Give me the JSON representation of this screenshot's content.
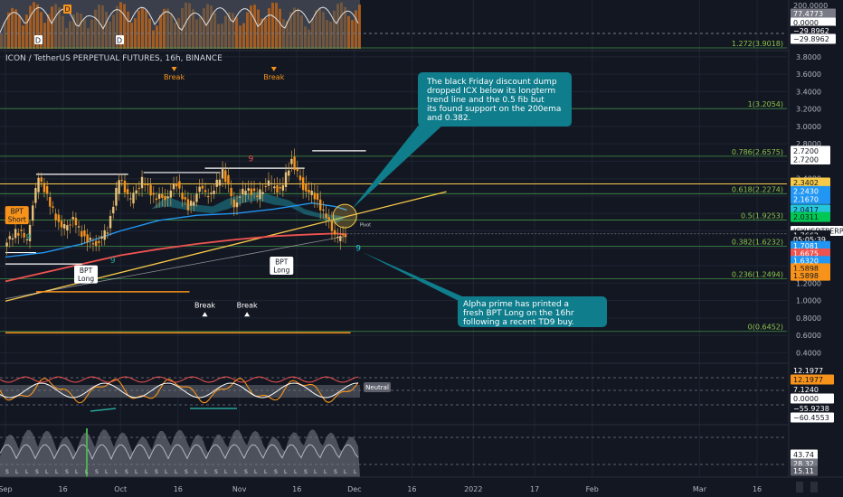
{
  "header": {
    "title": "ICON / TetherUS PERPETUAL FUTURES, 16h, BINANCE",
    "currency": "USDT"
  },
  "chart_data": {
    "type": "line",
    "title": "ICON / TetherUS PERPETUAL FUTURES, 16h, BINANCE",
    "xlabel": "",
    "ylabel": "USDT",
    "ylim": [
      0.3,
      3.85
    ],
    "grid": true,
    "x_ticks": [
      {
        "label": "Sep",
        "v": 0
      },
      {
        "label": "16",
        "v": 15
      },
      {
        "label": "Oct",
        "v": 30
      },
      {
        "label": "16",
        "v": 45
      },
      {
        "label": "Nov",
        "v": 61
      },
      {
        "label": "16",
        "v": 76
      },
      {
        "label": "Dec",
        "v": 91
      },
      {
        "label": "16",
        "v": 106
      },
      {
        "label": "2022",
        "v": 122
      },
      {
        "label": "17",
        "v": 138
      },
      {
        "label": "Feb",
        "v": 153
      },
      {
        "label": "Mar",
        "v": 181
      },
      {
        "label": "16",
        "v": 196
      }
    ],
    "y_ticks": [
      0.4,
      0.6,
      0.8,
      1.0,
      1.2,
      1.4,
      1.6,
      1.8,
      2.0,
      2.2,
      2.4,
      2.6,
      2.8,
      3.0,
      3.2,
      3.4,
      3.6,
      3.8
    ],
    "y_tick_labels": [
      "0.4000",
      "0.6000",
      "0.8000",
      "1.0000",
      "1.2000",
      "1.4000",
      "1.6000",
      "1.8000",
      "2.0000",
      "2.2000",
      "2.4000",
      "2.6000",
      "2.8000",
      "3.0000",
      "3.2000",
      "3.4000",
      "3.6000",
      "3.8000"
    ],
    "price_series": {
      "name": "ICXUSDTPERP",
      "x": [
        0,
        3,
        6,
        9,
        12,
        15,
        18,
        21,
        24,
        27,
        30,
        33,
        36,
        39,
        42,
        45,
        48,
        51,
        54,
        57,
        60,
        63,
        66,
        69,
        72,
        75,
        78,
        81,
        84,
        87,
        89
      ],
      "y": [
        1.62,
        1.8,
        1.72,
        2.45,
        2.1,
        1.82,
        1.92,
        1.72,
        1.65,
        1.82,
        2.4,
        2.15,
        2.38,
        2.2,
        2.18,
        2.35,
        2.05,
        2.28,
        2.2,
        2.5,
        2.1,
        2.3,
        2.2,
        2.35,
        2.25,
        2.62,
        2.3,
        2.2,
        1.95,
        1.7,
        1.766
      ]
    },
    "ema200": {
      "x": [
        0,
        10,
        20,
        30,
        40,
        50,
        60,
        70,
        80,
        86,
        89
      ],
      "y": [
        1.22,
        1.32,
        1.42,
        1.52,
        1.59,
        1.65,
        1.7,
        1.74,
        1.76,
        1.77,
        1.76
      ]
    },
    "ema_blue": {
      "x": [
        0,
        10,
        20,
        30,
        40,
        50,
        60,
        70,
        80,
        86,
        89
      ],
      "y": [
        1.5,
        1.55,
        1.65,
        1.8,
        1.92,
        1.98,
        2.0,
        2.05,
        2.12,
        2.08,
        2.04
      ]
    },
    "trend_line": {
      "x": [
        0,
        115
      ],
      "y": [
        1.2,
        2.25
      ]
    },
    "fib_levels": [
      {
        "ratio": "1.272(3.9018)",
        "price": 3.9018
      },
      {
        "ratio": "1(3.2054)",
        "price": 3.2054
      },
      {
        "ratio": "0.786(2.6575)",
        "price": 2.6575
      },
      {
        "ratio": "0.618(2.2274)",
        "price": 2.2274
      },
      {
        "ratio": "0.5(1.9253)",
        "price": 1.9253
      },
      {
        "ratio": "0.382(1.6232)",
        "price": 1.6232
      },
      {
        "ratio": "0.236(1.2494)",
        "price": 1.2494
      },
      {
        "ratio": "0(0.6452)",
        "price": 0.6452
      }
    ],
    "markers": [
      {
        "label": "Break",
        "x": 44,
        "price": 3.58,
        "dir": "down"
      },
      {
        "label": "Break",
        "x": 70,
        "price": 3.58,
        "dir": "down"
      },
      {
        "label": "Break",
        "x": 52,
        "price": 0.92,
        "dir": "up"
      },
      {
        "label": "Break",
        "x": 63,
        "price": 0.92,
        "dir": "up"
      }
    ],
    "bpt_labels": [
      {
        "line1": "BPT",
        "line2": "Short",
        "x": 3,
        "price": 1.98,
        "color": "#f7931a"
      },
      {
        "line1": "BPT",
        "line2": "Long",
        "x": 21,
        "price": 1.3,
        "color": "#ffffff"
      },
      {
        "line1": "BPT",
        "line2": "Long",
        "x": 72,
        "price": 1.4,
        "color": "#ffffff"
      }
    ],
    "annotations": [
      {
        "text": "The black Friday discount dump dropped ICX below its longterm trend line and the 0.5 fib but its found support on the 200ema and 0.382."
      },
      {
        "text": "Alpha prime has printed a fresh BPT Long on the 16hr following a recent TD9 buy."
      }
    ],
    "price_labels": [
      {
        "text": "2.7200",
        "bg": "#ffffff",
        "fg": "#131722",
        "price": 2.72
      },
      {
        "text": "2.7200",
        "bg": "#ffffff",
        "fg": "#131722",
        "price": 2.62
      },
      {
        "text": "2.3402",
        "bg": "#f7c948",
        "fg": "#131722",
        "price": 2.355
      },
      {
        "text": "2.2430",
        "bg": "#2196f3",
        "fg": "#ffffff",
        "price": 2.258
      },
      {
        "text": "2.1670",
        "bg": "#2196f3",
        "fg": "#ffffff",
        "price": 2.165
      },
      {
        "text": "2.0417",
        "bg": "#26c6da",
        "fg": "#131722",
        "price": 2.045
      },
      {
        "text": "2.0311",
        "bg": "#00c853",
        "fg": "#131722",
        "price": 1.96
      },
      {
        "text": "ICXUSDTPERP",
        "bg": "#ffffff",
        "fg": "#131722",
        "price": 1.8
      },
      {
        "text": "1.7662",
        "bg": "#131722",
        "fg": "#ffffff",
        "price": 1.75
      },
      {
        "text": "05:05:39",
        "bg": "#131722",
        "fg": "#ffffff",
        "price": 1.7
      },
      {
        "text": "1.7081",
        "bg": "#2196f3",
        "fg": "#ffffff",
        "price": 1.628
      },
      {
        "text": "1.6675",
        "bg": "#ef5350",
        "fg": "#ffffff",
        "price": 1.54
      },
      {
        "text": "1.6320",
        "bg": "#2196f3",
        "fg": "#ffffff",
        "price": 1.455
      },
      {
        "text": "1.5898",
        "bg": "#f7931a",
        "fg": "#131722",
        "price": 1.37
      },
      {
        "text": "1.5898",
        "bg": "#f7931a",
        "fg": "#131722",
        "price": 1.285
      }
    ],
    "top_panel_labels": [
      "200.0000",
      "77.4773",
      "0.0000",
      "−29.8962",
      "−29.8962"
    ],
    "osc_panel": {
      "neutral_label": "Neutral",
      "labels": [
        "12.1977",
        "12.1977",
        "7.1240",
        "0.0000",
        "−55.9238",
        "−60.4553"
      ]
    },
    "vol_panel": {
      "labels": [
        "43.74",
        "28.32",
        "15.11"
      ]
    }
  },
  "colors": {
    "background": "#131722",
    "grid": "#1e2433",
    "fib": "#4caf50",
    "trend": "#f7c948",
    "ema200": "#ef5350",
    "ema_blue": "#2196f3",
    "cyan": "#26c6da",
    "callout": "#0f7d8c",
    "orange": "#f7931a"
  }
}
